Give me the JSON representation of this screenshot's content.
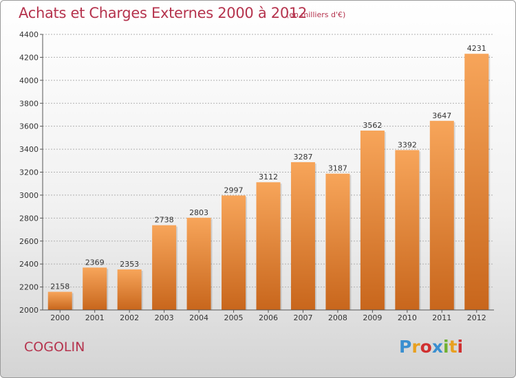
{
  "header": {
    "title": "Achats et Charges Externes 2000 à 2012",
    "subtitle": "(en milliers d'€)"
  },
  "footer": {
    "commune": "COGOLIN",
    "logo_text": "Proxiti",
    "logo_colors": [
      "#3a8fd0",
      "#e8a020",
      "#d03030",
      "#3a8fd0",
      "#70b030",
      "#e8a020",
      "#d03030"
    ]
  },
  "colors": {
    "title": "#b5334d",
    "bar_top": "#f7a55a",
    "bar_bottom": "#c8661c",
    "grid": "#b0b0b0"
  },
  "chart_data": {
    "type": "bar",
    "title": "Achats et Charges Externes 2000 à 2012",
    "subtitle": "(en milliers d'€)",
    "categories": [
      "2000",
      "2001",
      "2002",
      "2003",
      "2004",
      "2005",
      "2006",
      "2007",
      "2008",
      "2009",
      "2010",
      "2011",
      "2012"
    ],
    "values": [
      2158,
      2369,
      2353,
      2738,
      2803,
      2997,
      3112,
      3287,
      3187,
      3562,
      3392,
      3647,
      4231
    ],
    "yticks": [
      2000,
      2200,
      2400,
      2600,
      2800,
      3000,
      3200,
      3400,
      3600,
      3800,
      4000,
      4200,
      4400
    ],
    "ylim": [
      2000,
      4400
    ],
    "grid": true,
    "data_labels": true
  }
}
